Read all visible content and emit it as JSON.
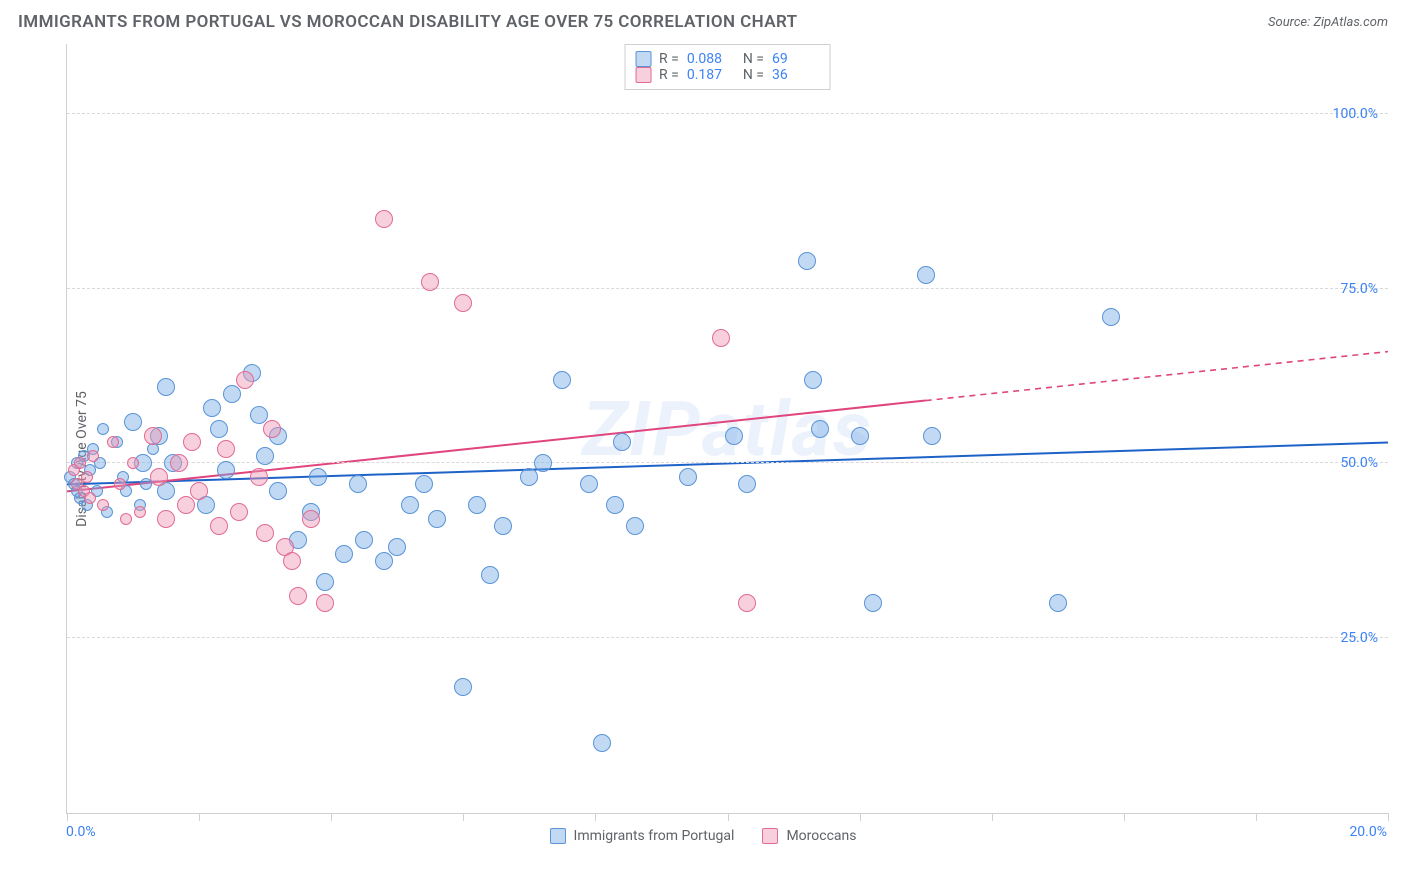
{
  "title": "IMMIGRANTS FROM PORTUGAL VS MOROCCAN DISABILITY AGE OVER 75 CORRELATION CHART",
  "source_label": "Source:",
  "source_name": "ZipAtlas.com",
  "ylabel": "Disability Age Over 75",
  "watermark": "ZIPatlas",
  "chart": {
    "type": "scatter",
    "xlim": [
      0,
      20
    ],
    "ylim": [
      0,
      110
    ],
    "x_ticks": [
      0,
      2,
      4,
      6,
      8,
      10,
      12,
      14,
      16,
      18,
      20
    ],
    "x_tick_labels": {
      "0": "0.0%",
      "20": "20.0%"
    },
    "y_gridlines": [
      25,
      50,
      75,
      100
    ],
    "y_tick_labels": {
      "25": "25.0%",
      "50": "50.0%",
      "75": "75.0%",
      "100": "100.0%"
    },
    "background_color": "#ffffff",
    "grid_color": "#d9d9d9",
    "axis_color": "#d0d0d0",
    "tick_label_color": "#3b82f6",
    "label_color": "#5f6368",
    "point_radius_small": 6,
    "point_radius_large": 9,
    "series": [
      {
        "key": "portugal",
        "label": "Immigrants from Portugal",
        "fill": "rgba(120,170,230,0.45)",
        "stroke": "#5a94d6",
        "R": "0.088",
        "N": "69",
        "trend": {
          "y_at_x0": 47,
          "y_at_x20": 53,
          "color": "#1d63c7",
          "width": 2,
          "solid_until_x": 20
        },
        "points": [
          {
            "x": 0.05,
            "y": 48,
            "r": 6
          },
          {
            "x": 0.1,
            "y": 47,
            "r": 6
          },
          {
            "x": 0.15,
            "y": 46,
            "r": 6
          },
          {
            "x": 0.15,
            "y": 50,
            "r": 6
          },
          {
            "x": 0.2,
            "y": 45,
            "r": 6
          },
          {
            "x": 0.25,
            "y": 51,
            "r": 6
          },
          {
            "x": 0.3,
            "y": 44,
            "r": 6
          },
          {
            "x": 0.35,
            "y": 49,
            "r": 6
          },
          {
            "x": 0.4,
            "y": 52,
            "r": 6
          },
          {
            "x": 0.45,
            "y": 46,
            "r": 6
          },
          {
            "x": 0.5,
            "y": 50,
            "r": 6
          },
          {
            "x": 0.55,
            "y": 55,
            "r": 6
          },
          {
            "x": 0.6,
            "y": 43,
            "r": 6
          },
          {
            "x": 0.75,
            "y": 53,
            "r": 6
          },
          {
            "x": 0.85,
            "y": 48,
            "r": 6
          },
          {
            "x": 0.9,
            "y": 46,
            "r": 6
          },
          {
            "x": 1.0,
            "y": 56,
            "r": 9
          },
          {
            "x": 1.1,
            "y": 44,
            "r": 6
          },
          {
            "x": 1.15,
            "y": 50,
            "r": 9
          },
          {
            "x": 1.2,
            "y": 47,
            "r": 6
          },
          {
            "x": 1.3,
            "y": 52,
            "r": 6
          },
          {
            "x": 1.4,
            "y": 54,
            "r": 9
          },
          {
            "x": 1.5,
            "y": 61,
            "r": 9
          },
          {
            "x": 1.5,
            "y": 46,
            "r": 9
          },
          {
            "x": 1.6,
            "y": 50,
            "r": 9
          },
          {
            "x": 2.1,
            "y": 44,
            "r": 9
          },
          {
            "x": 2.2,
            "y": 58,
            "r": 9
          },
          {
            "x": 2.3,
            "y": 55,
            "r": 9
          },
          {
            "x": 2.4,
            "y": 49,
            "r": 9
          },
          {
            "x": 2.5,
            "y": 60,
            "r": 9
          },
          {
            "x": 2.8,
            "y": 63,
            "r": 9
          },
          {
            "x": 2.9,
            "y": 57,
            "r": 9
          },
          {
            "x": 3.0,
            "y": 51,
            "r": 9
          },
          {
            "x": 3.2,
            "y": 46,
            "r": 9
          },
          {
            "x": 3.2,
            "y": 54,
            "r": 9
          },
          {
            "x": 3.5,
            "y": 39,
            "r": 9
          },
          {
            "x": 3.7,
            "y": 43,
            "r": 9
          },
          {
            "x": 3.8,
            "y": 48,
            "r": 9
          },
          {
            "x": 3.9,
            "y": 33,
            "r": 9
          },
          {
            "x": 4.2,
            "y": 37,
            "r": 9
          },
          {
            "x": 4.4,
            "y": 47,
            "r": 9
          },
          {
            "x": 4.5,
            "y": 39,
            "r": 9
          },
          {
            "x": 4.8,
            "y": 36,
            "r": 9
          },
          {
            "x": 5.0,
            "y": 38,
            "r": 9
          },
          {
            "x": 5.2,
            "y": 44,
            "r": 9
          },
          {
            "x": 5.4,
            "y": 47,
            "r": 9
          },
          {
            "x": 5.6,
            "y": 42,
            "r": 9
          },
          {
            "x": 6.0,
            "y": 18,
            "r": 9
          },
          {
            "x": 6.2,
            "y": 44,
            "r": 9
          },
          {
            "x": 6.4,
            "y": 34,
            "r": 9
          },
          {
            "x": 6.6,
            "y": 41,
            "r": 9
          },
          {
            "x": 7.0,
            "y": 48,
            "r": 9
          },
          {
            "x": 7.2,
            "y": 50,
            "r": 9
          },
          {
            "x": 7.5,
            "y": 62,
            "r": 9
          },
          {
            "x": 7.9,
            "y": 47,
            "r": 9
          },
          {
            "x": 8.1,
            "y": 10,
            "r": 9
          },
          {
            "x": 8.3,
            "y": 44,
            "r": 9
          },
          {
            "x": 8.4,
            "y": 53,
            "r": 9
          },
          {
            "x": 8.6,
            "y": 41,
            "r": 9
          },
          {
            "x": 9.4,
            "y": 48,
            "r": 9
          },
          {
            "x": 10.1,
            "y": 54,
            "r": 9
          },
          {
            "x": 10.3,
            "y": 47,
            "r": 9
          },
          {
            "x": 11.2,
            "y": 79,
            "r": 9
          },
          {
            "x": 11.3,
            "y": 62,
            "r": 9
          },
          {
            "x": 11.4,
            "y": 55,
            "r": 9
          },
          {
            "x": 12.0,
            "y": 54,
            "r": 9
          },
          {
            "x": 12.2,
            "y": 30,
            "r": 9
          },
          {
            "x": 13.0,
            "y": 77,
            "r": 9
          },
          {
            "x": 13.1,
            "y": 54,
            "r": 9
          },
          {
            "x": 15.0,
            "y": 30,
            "r": 9
          },
          {
            "x": 15.8,
            "y": 71,
            "r": 9
          }
        ]
      },
      {
        "key": "moroccans",
        "label": "Moroccans",
        "fill": "rgba(240,150,180,0.45)",
        "stroke": "#e06b95",
        "R": "0.187",
        "N": "36",
        "trend": {
          "y_at_x0": 46,
          "y_at_x20": 66,
          "color": "#e0457e",
          "width": 2,
          "solid_until_x": 13
        },
        "points": [
          {
            "x": 0.1,
            "y": 49,
            "r": 6
          },
          {
            "x": 0.15,
            "y": 47,
            "r": 6
          },
          {
            "x": 0.2,
            "y": 50,
            "r": 6
          },
          {
            "x": 0.25,
            "y": 46,
            "r": 6
          },
          {
            "x": 0.3,
            "y": 48,
            "r": 6
          },
          {
            "x": 0.35,
            "y": 45,
            "r": 6
          },
          {
            "x": 0.4,
            "y": 51,
            "r": 6
          },
          {
            "x": 0.55,
            "y": 44,
            "r": 6
          },
          {
            "x": 0.7,
            "y": 53,
            "r": 6
          },
          {
            "x": 0.8,
            "y": 47,
            "r": 6
          },
          {
            "x": 0.9,
            "y": 42,
            "r": 6
          },
          {
            "x": 1.0,
            "y": 50,
            "r": 6
          },
          {
            "x": 1.1,
            "y": 43,
            "r": 6
          },
          {
            "x": 1.3,
            "y": 54,
            "r": 9
          },
          {
            "x": 1.4,
            "y": 48,
            "r": 9
          },
          {
            "x": 1.5,
            "y": 42,
            "r": 9
          },
          {
            "x": 1.7,
            "y": 50,
            "r": 9
          },
          {
            "x": 1.8,
            "y": 44,
            "r": 9
          },
          {
            "x": 1.9,
            "y": 53,
            "r": 9
          },
          {
            "x": 2.0,
            "y": 46,
            "r": 9
          },
          {
            "x": 2.3,
            "y": 41,
            "r": 9
          },
          {
            "x": 2.4,
            "y": 52,
            "r": 9
          },
          {
            "x": 2.6,
            "y": 43,
            "r": 9
          },
          {
            "x": 2.7,
            "y": 62,
            "r": 9
          },
          {
            "x": 2.9,
            "y": 48,
            "r": 9
          },
          {
            "x": 3.0,
            "y": 40,
            "r": 9
          },
          {
            "x": 3.1,
            "y": 55,
            "r": 9
          },
          {
            "x": 3.3,
            "y": 38,
            "r": 9
          },
          {
            "x": 3.4,
            "y": 36,
            "r": 9
          },
          {
            "x": 3.5,
            "y": 31,
            "r": 9
          },
          {
            "x": 3.7,
            "y": 42,
            "r": 9
          },
          {
            "x": 3.9,
            "y": 30,
            "r": 9
          },
          {
            "x": 4.8,
            "y": 85,
            "r": 9
          },
          {
            "x": 5.5,
            "y": 76,
            "r": 9
          },
          {
            "x": 6.0,
            "y": 73,
            "r": 9
          },
          {
            "x": 9.9,
            "y": 68,
            "r": 9
          },
          {
            "x": 10.3,
            "y": 30,
            "r": 9
          }
        ]
      }
    ]
  },
  "legend_R_label": "R =",
  "legend_N_label": "N ="
}
